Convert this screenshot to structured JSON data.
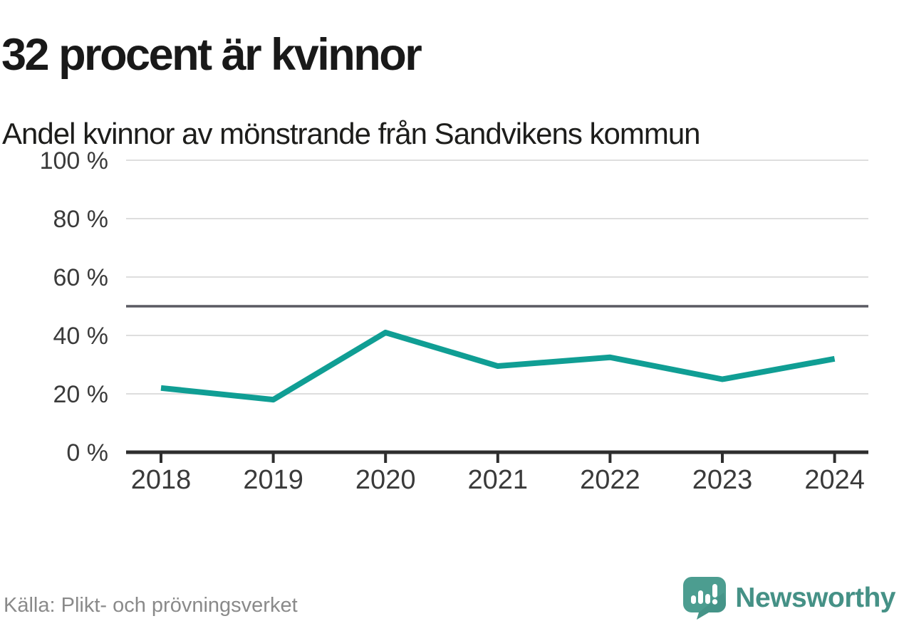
{
  "header": {
    "title": "32 procent är kvinnor",
    "subtitle": "Andel kvinnor av mönstrande från Sandvikens kommun"
  },
  "chart_data": {
    "type": "line",
    "title": "32 procent är kvinnor",
    "subtitle": "Andel kvinnor av mönstrande från Sandvikens kommun",
    "x": [
      "2018",
      "2019",
      "2020",
      "2021",
      "2022",
      "2023",
      "2024"
    ],
    "series": [
      {
        "name": "Andel kvinnor av mönstrande",
        "values": [
          22,
          18,
          41,
          29.5,
          32.5,
          25,
          32
        ],
        "color": "#109e94"
      }
    ],
    "xlabel": "",
    "ylabel": "",
    "ylim": [
      0,
      100
    ],
    "yticks": [
      0,
      20,
      40,
      60,
      80,
      100
    ],
    "ytick_labels": [
      "0 %",
      "20 %",
      "40 %",
      "60 %",
      "80 %",
      "100 %"
    ],
    "reference_line": {
      "value": 50,
      "color": "#5a5a62"
    },
    "grid": "horizontal",
    "legend": "none"
  },
  "footer": {
    "source": "Källa: Plikt- och prövningsverket",
    "brand": "Newsworthy"
  },
  "colors": {
    "line": "#109e94",
    "grid": "#dedede",
    "reference": "#5a5a62",
    "axis": "#2e2e2e",
    "tick_text": "#3a3a3a",
    "title_text": "#191919",
    "muted_text": "#8a8a8a",
    "brand_teal": "#459186",
    "logo_bubble": "#4c9d90",
    "logo_shadow": "#3e8a7f"
  }
}
